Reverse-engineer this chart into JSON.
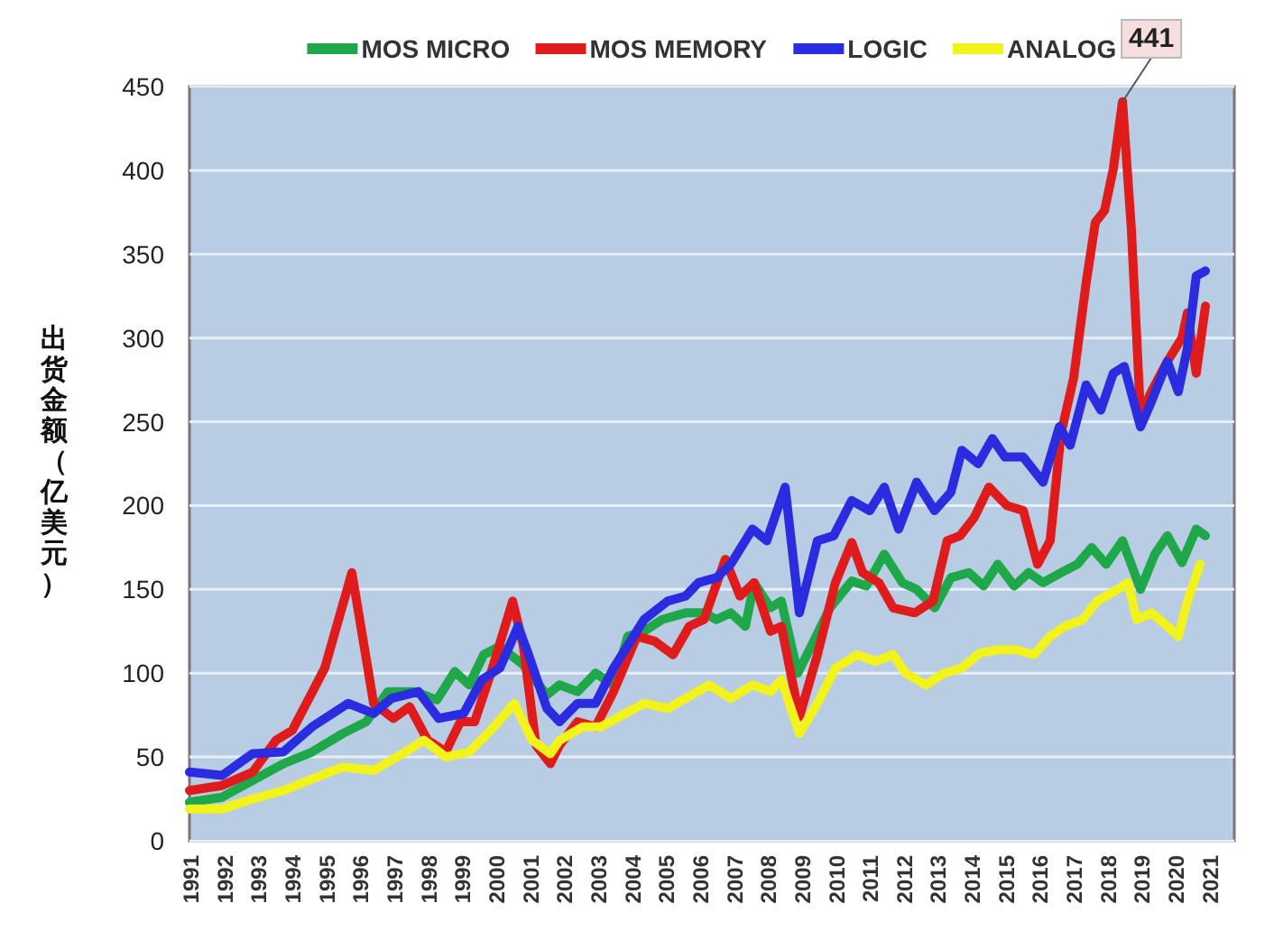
{
  "chart_data": {
    "type": "line",
    "ylabel": "出货金额（亿美元）",
    "xlim": [
      1991,
      2021.75
    ],
    "ylim": [
      0,
      450
    ],
    "xticks": [
      1991,
      1992,
      1993,
      1994,
      1995,
      1996,
      1997,
      1998,
      1999,
      2000,
      2001,
      2002,
      2003,
      2004,
      2005,
      2006,
      2007,
      2008,
      2009,
      2010,
      2011,
      2012,
      2013,
      2014,
      2015,
      2016,
      2017,
      2018,
      2019,
      2020,
      2021
    ],
    "yticks": [
      0,
      50,
      100,
      150,
      200,
      250,
      300,
      350,
      400,
      450
    ],
    "grid": "y",
    "legend": "top",
    "annotations": [
      {
        "text": "441",
        "x": 2018.46,
        "y": 441
      }
    ],
    "series": [
      {
        "name": "MOS MICRO",
        "color": "#1fa84a",
        "x": [
          1991.0,
          1991.96,
          1992.86,
          1993.76,
          1994.61,
          1995.51,
          1996.2,
          1996.84,
          1997.64,
          1998.28,
          1998.81,
          1999.23,
          1999.66,
          2000.13,
          2000.82,
          2001.52,
          2001.89,
          2002.42,
          2002.95,
          2003.48,
          2003.9,
          2004.38,
          2004.91,
          2005.6,
          2006.14,
          2006.51,
          2006.93,
          2007.36,
          2007.62,
          2008.1,
          2008.42,
          2008.9,
          2009.32,
          2009.85,
          2010.49,
          2010.92,
          2011.45,
          2011.98,
          2012.4,
          2012.93,
          2013.41,
          2013.94,
          2014.37,
          2014.79,
          2015.27,
          2015.7,
          2016.12,
          2016.65,
          2017.13,
          2017.55,
          2017.98,
          2018.46,
          2018.99,
          2019.41,
          2019.78,
          2020.21,
          2020.63,
          2020.9
        ],
        "values": [
          23,
          26,
          36,
          46,
          53,
          64,
          71,
          89,
          89,
          84,
          101,
          93,
          111,
          116,
          105,
          87,
          93,
          89,
          100,
          93,
          122,
          125,
          132,
          136,
          136,
          132,
          136,
          128,
          154,
          139,
          143,
          100,
          117,
          139,
          155,
          152,
          171,
          154,
          150,
          139,
          157,
          160,
          152,
          165,
          152,
          160,
          154,
          160,
          165,
          175,
          165,
          179,
          150,
          171,
          182,
          166,
          186,
          182
        ]
      },
      {
        "name": "MOS MEMORY",
        "color": "#e01b1b",
        "x": [
          1991.0,
          1991.96,
          1992.86,
          1993.55,
          1994.03,
          1994.98,
          1995.78,
          1996.42,
          1997.0,
          1997.48,
          1998.01,
          1998.54,
          1998.97,
          1999.39,
          1999.87,
          2000.51,
          2000.82,
          2001.2,
          2001.62,
          2001.89,
          2002.42,
          2002.95,
          2003.48,
          2004.17,
          2004.7,
          2005.23,
          2005.71,
          2006.14,
          2006.77,
          2007.2,
          2007.62,
          2008.1,
          2008.42,
          2008.95,
          2009.48,
          2010.01,
          2010.49,
          2010.81,
          2011.29,
          2011.71,
          2012.35,
          2012.88,
          2013.3,
          2013.68,
          2014.1,
          2014.53,
          2015.06,
          2015.54,
          2015.96,
          2016.33,
          2016.65,
          2017.02,
          2017.39,
          2017.66,
          2017.93,
          2018.19,
          2018.46,
          2018.72,
          2018.99,
          2019.31,
          2019.78,
          2020.21,
          2020.37,
          2020.63,
          2020.9
        ],
        "values": [
          30,
          33,
          41,
          60,
          66,
          103,
          160,
          82,
          73,
          80,
          60,
          53,
          71,
          71,
          100,
          143,
          117,
          57,
          46,
          57,
          71,
          68,
          89,
          122,
          119,
          111,
          128,
          132,
          168,
          146,
          154,
          125,
          128,
          74,
          111,
          154,
          178,
          160,
          154,
          139,
          136,
          143,
          179,
          182,
          193,
          211,
          200,
          197,
          165,
          179,
          243,
          276,
          333,
          369,
          376,
          401,
          441,
          365,
          254,
          268,
          286,
          300,
          315,
          279,
          319
        ]
      },
      {
        "name": "LOGIC",
        "color": "#2b2be0",
        "x": [
          1991.0,
          1991.96,
          1992.86,
          1993.76,
          1994.61,
          1995.67,
          1996.42,
          1996.95,
          1997.74,
          1998.33,
          1999.07,
          1999.6,
          2000.13,
          2000.67,
          2000.98,
          2001.52,
          2001.89,
          2002.42,
          2002.95,
          2003.48,
          2004.38,
          2005.07,
          2005.6,
          2005.98,
          2006.51,
          2006.93,
          2007.57,
          2007.99,
          2008.53,
          2008.95,
          2009.48,
          2009.96,
          2010.49,
          2011.02,
          2011.45,
          2011.87,
          2012.4,
          2012.93,
          2013.41,
          2013.73,
          2014.21,
          2014.63,
          2015.0,
          2015.54,
          2016.12,
          2016.6,
          2016.92,
          2017.39,
          2017.82,
          2018.19,
          2018.51,
          2018.99,
          2019.31,
          2019.78,
          2020.1,
          2020.37,
          2020.63,
          2020.9
        ],
        "values": [
          41,
          39,
          52,
          53,
          68,
          82,
          76,
          85,
          89,
          73,
          76,
          96,
          103,
          128,
          111,
          79,
          71,
          82,
          82,
          103,
          132,
          143,
          146,
          154,
          157,
          165,
          186,
          179,
          211,
          136,
          179,
          182,
          203,
          197,
          211,
          186,
          214,
          197,
          208,
          233,
          225,
          240,
          229,
          229,
          214,
          247,
          236,
          272,
          257,
          279,
          283,
          247,
          262,
          286,
          268,
          294,
          337,
          340
        ]
      },
      {
        "name": "ANALOG",
        "color": "#f2f21c",
        "x": [
          1991.0,
          1991.96,
          1992.86,
          1993.76,
          1994.61,
          1995.51,
          1996.42,
          1997.27,
          1997.9,
          1998.54,
          1999.23,
          1999.87,
          2000.56,
          2001.09,
          2001.62,
          2001.89,
          2002.58,
          2003.11,
          2003.64,
          2004.38,
          2005.07,
          2005.6,
          2006.29,
          2006.93,
          2007.57,
          2008.1,
          2008.42,
          2008.95,
          2009.48,
          2010.01,
          2010.65,
          2011.18,
          2011.71,
          2012.08,
          2012.67,
          2013.2,
          2013.73,
          2014.26,
          2014.79,
          2015.32,
          2015.85,
          2016.33,
          2016.76,
          2017.29,
          2017.71,
          2018.24,
          2018.62,
          2018.88,
          2019.31,
          2019.78,
          2020.1,
          2020.37,
          2020.74
        ],
        "values": [
          19,
          19,
          25,
          30,
          37,
          44,
          42,
          52,
          60,
          50,
          53,
          66,
          82,
          60,
          52,
          60,
          68,
          68,
          74,
          82,
          79,
          85,
          93,
          85,
          93,
          89,
          96,
          64,
          82,
          103,
          111,
          107,
          111,
          100,
          93,
          100,
          103,
          112,
          114,
          114,
          111,
          122,
          128,
          132,
          143,
          149,
          154,
          132,
          136,
          128,
          122,
          143,
          165
        ]
      }
    ]
  }
}
